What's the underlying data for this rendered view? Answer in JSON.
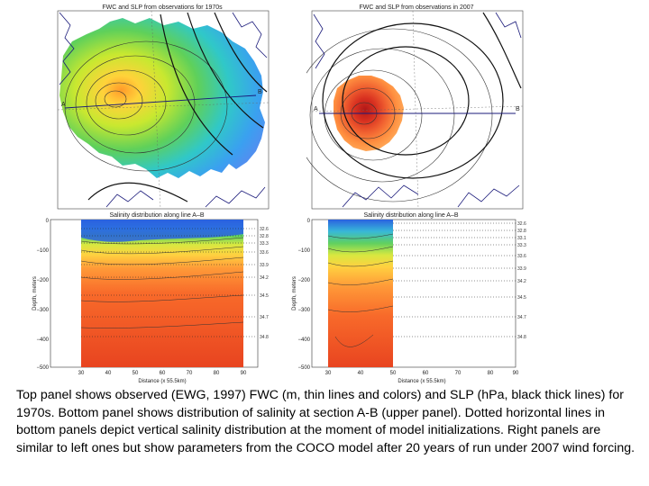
{
  "panels": {
    "top_left": {
      "title": "FWC and SLP from observations for 1970s",
      "section_labels": [
        "A",
        "B"
      ]
    },
    "top_right": {
      "title": "FWC and SLP from observations in 2007",
      "section_labels": [
        "A",
        "B"
      ]
    },
    "bottom_left": {
      "title": "Salinity distribution along line A–B",
      "ylabel": "Depth, meters",
      "xlabel": "Distance (x 55.5km)",
      "yticks": [
        "0",
        "−100",
        "−200",
        "−300",
        "−400",
        "−500"
      ],
      "xticks": [
        "30",
        "40",
        "50",
        "60",
        "70",
        "80",
        "90"
      ],
      "right_values": [
        "32.6",
        "32.8",
        "33.3",
        "33.6",
        "33.9",
        "34.2",
        "34.5",
        "34.7",
        "34.8"
      ]
    },
    "bottom_right": {
      "title": "Salinity distribution along line A–B",
      "ylabel": "Depth, meters",
      "xlabel": "Distance (x 55.5km)",
      "yticks": [
        "0",
        "−100",
        "−200",
        "−300",
        "−400",
        "−500"
      ],
      "xticks": [
        "30",
        "40",
        "50",
        "60",
        "70",
        "80",
        "90"
      ],
      "right_values": [
        "32.6",
        "32.8",
        "33.1",
        "33.3",
        "33.6",
        "33.9",
        "34.2",
        "34.5",
        "34.7",
        "34.8"
      ]
    }
  },
  "caption": "Top panel shows observed (EWG, 1997) FWC (m, thin lines and colors) and SLP (hPa, black thick lines) for 1970s. Bottom panel shows distribution of salinity at section A-B (upper panel). Dotted horizontal lines in bottom panels depict vertical salinity distribution at the moment of model initializations. Right panels are similar to left ones but show parameters from the COCO model after 20 years of run under 2007 wind forcing."
}
